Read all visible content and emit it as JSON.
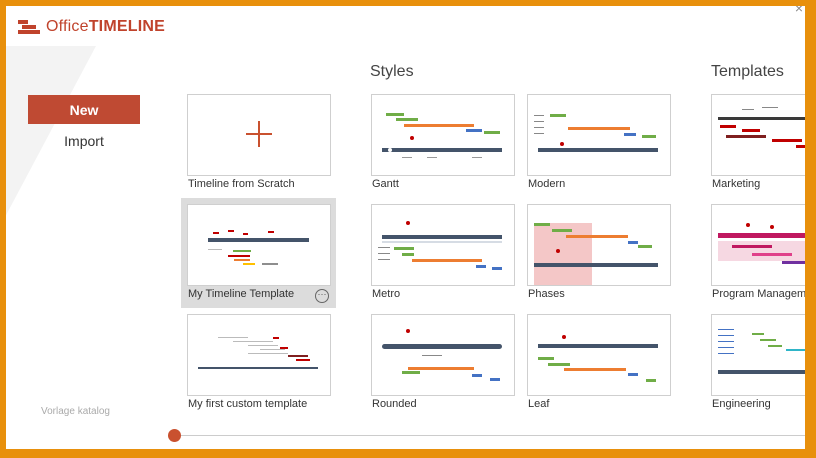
{
  "app": {
    "brand_office": "Office",
    "brand_timeline": "TIMELINE",
    "close_symbol": "×"
  },
  "sidebar": {
    "new_label": "New",
    "import_label": "Import",
    "catalog_text": "Vorlage katalog"
  },
  "sections": {
    "styles": "Styles",
    "templates": "Templates"
  },
  "tiles": {
    "scratch": "Timeline from Scratch",
    "my_template": "My Timeline Template",
    "custom": "My first custom template",
    "gantt": "Gantt",
    "modern": "Modern",
    "metro": "Metro",
    "phases": "Phases",
    "rounded": "Rounded",
    "leaf": "Leaf",
    "marketing": "Marketing",
    "program": "Program Management",
    "engineering": "Engineering"
  },
  "more_symbol": "···",
  "colors": {
    "brand": "#c0432c",
    "accent_button": "#bf4a33",
    "frame": "#e8900c"
  }
}
